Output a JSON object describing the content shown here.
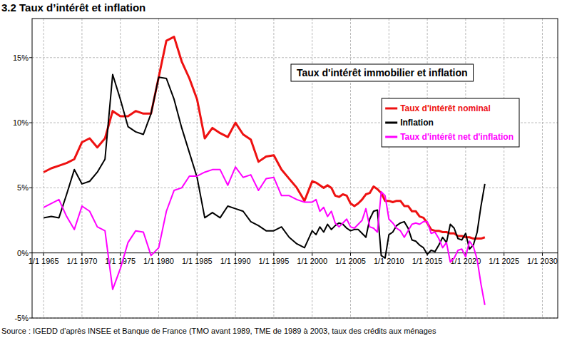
{
  "chart_data": {
    "type": "line",
    "title": "3.2 Taux d’intérêt et inflation",
    "subtitle": "Taux d'intérêt immobilier et inflation",
    "source": "Source : IGEDD d’après INSEE et  Banque de France (TMO avant 1989, TME de 1989 à 2003, taux des crédits aux ménages",
    "x": [
      1965,
      1966,
      1967,
      1968,
      1969,
      1970,
      1971,
      1972,
      1973,
      1974,
      1975,
      1976,
      1977,
      1978,
      1979,
      1980,
      1981,
      1982,
      1983,
      1984,
      1985,
      1986,
      1987,
      1988,
      1989,
      1990,
      1991,
      1992,
      1993,
      1994,
      1995,
      1996,
      1997,
      1998,
      1999,
      2000,
      2000.5,
      2001,
      2001.5,
      2002,
      2002.5,
      2003,
      2003.5,
      2004,
      2004.5,
      2005,
      2005.5,
      2006,
      2006.5,
      2007,
      2007.5,
      2008,
      2008.5,
      2009,
      2009.5,
      2010,
      2010.5,
      2011,
      2011.5,
      2012,
      2012.5,
      2013,
      2013.5,
      2014,
      2014.5,
      2015,
      2015.5,
      2016,
      2016.5,
      2017,
      2017.5,
      2018,
      2018.5,
      2019,
      2019.5,
      2020,
      2020.5,
      2021,
      2021.5,
      2022,
      2022.5
    ],
    "series": [
      {
        "name": "Taux d'intérêt nominal",
        "color": "#ee1111",
        "line_style": "solid",
        "values": [
          6.2,
          6.5,
          6.7,
          6.9,
          7.2,
          8.5,
          8.8,
          8.1,
          8.8,
          10.9,
          10.5,
          10.5,
          10.9,
          10.7,
          10.7,
          13.5,
          16.3,
          16.6,
          14.7,
          13.4,
          11.8,
          8.8,
          9.6,
          9.2,
          8.9,
          10.0,
          9.1,
          8.7,
          7.0,
          7.4,
          7.5,
          6.4,
          5.7,
          5.0,
          4.0,
          5.5,
          5.4,
          5.2,
          5.0,
          5.2,
          5.0,
          4.4,
          4.3,
          4.5,
          4.4,
          3.8,
          3.6,
          3.8,
          4.1,
          4.5,
          4.6,
          5.1,
          4.9,
          4.6,
          4.0,
          4.0,
          3.9,
          4.0,
          4.0,
          3.6,
          3.6,
          3.2,
          3.2,
          2.8,
          2.7,
          2.3,
          1.8,
          1.7,
          1.7,
          1.6,
          1.6,
          1.5,
          1.5,
          1.3,
          1.3,
          1.2,
          1.2,
          1.1,
          1.1,
          1.1,
          1.2
        ]
      },
      {
        "name": "Inflation",
        "color": "#000000",
        "line_style": "solid",
        "values": [
          2.7,
          2.8,
          2.7,
          4.5,
          6.4,
          5.3,
          5.5,
          6.2,
          7.2,
          13.7,
          11.8,
          9.7,
          9.3,
          9.1,
          10.7,
          13.5,
          13.4,
          11.8,
          9.6,
          7.7,
          5.8,
          2.7,
          3.1,
          2.7,
          3.6,
          3.4,
          3.2,
          2.4,
          2.1,
          1.7,
          1.7,
          2.0,
          1.2,
          0.7,
          0.4,
          1.7,
          1.4,
          2.0,
          1.6,
          2.2,
          1.8,
          2.1,
          2.3,
          2.2,
          1.9,
          1.7,
          1.8,
          1.8,
          1.5,
          1.2,
          2.6,
          3.2,
          3.3,
          -0.2,
          -0.4,
          1.4,
          1.6,
          2.1,
          2.3,
          2.4,
          1.9,
          1.0,
          0.9,
          0.6,
          0.4,
          -0.1,
          0.2,
          0.1,
          0.6,
          1.2,
          0.8,
          2.2,
          1.9,
          1.1,
          1.0,
          1.5,
          0.3,
          0.6,
          1.6,
          3.6,
          5.3
        ]
      },
      {
        "name": "Taux d'intérêt net d'inflation",
        "color": "#ff00ff",
        "line_style": "solid",
        "values": [
          3.5,
          3.8,
          4.1,
          2.8,
          1.8,
          3.6,
          3.2,
          2.0,
          1.7,
          -2.8,
          -1.2,
          0.8,
          1.7,
          1.6,
          -0.2,
          0.4,
          3.2,
          4.8,
          5.0,
          5.9,
          5.9,
          6.2,
          6.4,
          6.4,
          5.2,
          6.6,
          5.8,
          6.0,
          4.8,
          5.7,
          5.8,
          4.4,
          4.4,
          4.1,
          3.9,
          3.9,
          4.1,
          3.2,
          3.5,
          2.8,
          3.2,
          2.3,
          2.0,
          2.3,
          2.6,
          2.0,
          1.9,
          2.2,
          2.5,
          3.4,
          2.0,
          1.9,
          1.6,
          4.7,
          4.4,
          2.6,
          2.3,
          1.9,
          1.7,
          1.2,
          1.7,
          2.2,
          2.3,
          2.2,
          2.4,
          2.4,
          1.5,
          1.6,
          1.1,
          0.4,
          0.8,
          -0.7,
          -0.4,
          0.2,
          0.3,
          -0.3,
          0.9,
          0.5,
          -0.5,
          -2.4,
          -4.0
        ]
      }
    ],
    "xlim": [
      1963.5,
      2032
    ],
    "xticks": [
      {
        "value": 1965,
        "label": "1/1 1965"
      },
      {
        "value": 1970,
        "label": "1/1 1970"
      },
      {
        "value": 1975,
        "label": "1/1 1975"
      },
      {
        "value": 1980,
        "label": "1/1 1980"
      },
      {
        "value": 1985,
        "label": "1/1 1985"
      },
      {
        "value": 1990,
        "label": "1/1 1990"
      },
      {
        "value": 1995,
        "label": "1/1 1995"
      },
      {
        "value": 2000,
        "label": "1/1 2000"
      },
      {
        "value": 2005,
        "label": "1/1 2005"
      },
      {
        "value": 2010,
        "label": "1/1 2010"
      },
      {
        "value": 2015,
        "label": "1/1 2015"
      },
      {
        "value": 2020,
        "label": "1/1 2020"
      },
      {
        "value": 2025,
        "label": "1/1 2025"
      },
      {
        "value": 2030,
        "label": "1/1 2030"
      }
    ],
    "ylim": [
      -5,
      18
    ],
    "yticks": [
      {
        "value": -5,
        "label": "-5%"
      },
      {
        "value": 0,
        "label": "0%"
      },
      {
        "value": 5,
        "label": "5%"
      },
      {
        "value": 10,
        "label": "10%"
      },
      {
        "value": 15,
        "label": "15%"
      }
    ],
    "grid": true,
    "legend": "top-right"
  }
}
